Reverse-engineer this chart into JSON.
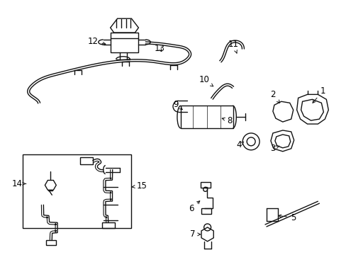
{
  "background_color": "#ffffff",
  "line_color": "#111111",
  "text_color": "#000000",
  "label_fontsize": 8.5,
  "fig_width": 4.89,
  "fig_height": 3.6,
  "dpi": 100
}
